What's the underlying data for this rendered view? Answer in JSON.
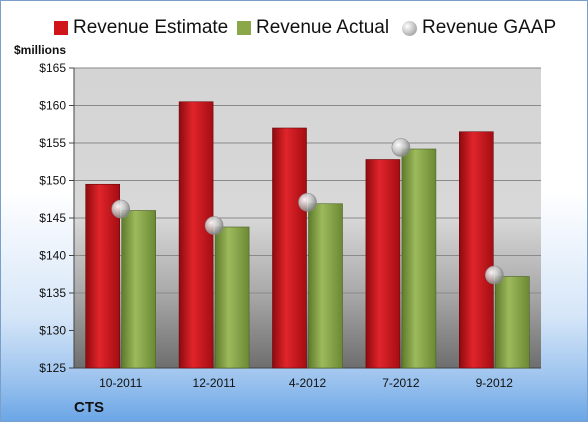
{
  "chart_data": {
    "type": "bar",
    "categories": [
      "10-2011",
      "12-2011",
      "4-2012",
      "7-2012",
      "9-2012"
    ],
    "series": [
      {
        "name": "Revenue Estimate",
        "values": [
          149.5,
          160.5,
          157.0,
          152.8,
          156.5
        ],
        "color": "#d0141a"
      },
      {
        "name": "Revenue Actual",
        "values": [
          146.0,
          143.8,
          146.9,
          154.2,
          137.2
        ],
        "color": "#8aa84a"
      },
      {
        "name": "Revenue GAAP",
        "values": [
          146.2,
          144.0,
          147.1,
          154.4,
          137.4
        ],
        "color": "#b8b8b8",
        "style": "marker"
      }
    ],
    "ylabel": "$millions",
    "ylim": [
      125,
      165
    ],
    "yticks": [
      "$125",
      "$130",
      "$135",
      "$140",
      "$145",
      "$150",
      "$155",
      "$160",
      "$165"
    ],
    "grid": true,
    "legend_position": "top"
  },
  "footer": {
    "ticker": "CTS"
  }
}
